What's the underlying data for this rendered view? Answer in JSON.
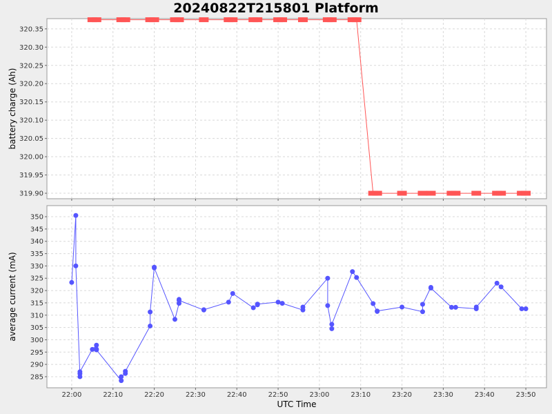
{
  "title": "20240822T215801 Platform",
  "xlabel": "UTC Time",
  "x_ticks": [
    "22:00",
    "22:10",
    "22:20",
    "22:30",
    "22:40",
    "22:50",
    "23:00",
    "23:10",
    "23:20",
    "23:30",
    "23:40",
    "23:50"
  ],
  "colors": {
    "top_series": "#ff5555",
    "bottom_series": "#5555ff",
    "grid": "#d8d8d8",
    "plot_bg": "#ffffff",
    "page_bg": "#eeeeee"
  },
  "chart_data": [
    {
      "type": "line",
      "ylabel": "battery charge (Ah)",
      "ylim": [
        319.885,
        320.378
      ],
      "y_ticks": [
        "319.90",
        "319.95",
        "320.00",
        "320.05",
        "320.10",
        "320.15",
        "320.20",
        "320.25",
        "320.30",
        "320.35"
      ],
      "marker": "square",
      "grid": true,
      "series": [
        {
          "x": [
            "22:05",
            "22:06",
            "22:12",
            "22:13",
            "22:19",
            "22:20",
            "22:25",
            "22:26",
            "22:32",
            "22:38",
            "22:39",
            "22:44",
            "22:45",
            "22:50",
            "22:51",
            "22:56",
            "23:02",
            "23:03",
            "23:08",
            "23:09",
            "23:13",
            "23:14",
            "23:20",
            "23:25",
            "23:27",
            "23:32",
            "23:33",
            "23:38",
            "23:43",
            "23:44",
            "23:49",
            "23:50"
          ],
          "y": [
            320.375,
            320.375,
            320.375,
            320.375,
            320.375,
            320.375,
            320.375,
            320.375,
            320.375,
            320.375,
            320.375,
            320.375,
            320.375,
            320.375,
            320.375,
            320.375,
            320.375,
            320.375,
            320.375,
            320.375,
            319.9,
            319.9,
            319.9,
            319.9,
            319.9,
            319.9,
            319.9,
            319.9,
            319.9,
            319.9,
            319.9,
            319.9
          ]
        }
      ]
    },
    {
      "type": "line",
      "ylabel": "average current (mA)",
      "ylim": [
        280.5,
        354.5
      ],
      "y_ticks": [
        "285",
        "290",
        "295",
        "300",
        "305",
        "310",
        "315",
        "320",
        "325",
        "330",
        "335",
        "340",
        "345",
        "350"
      ],
      "marker": "circle",
      "grid": true,
      "series": [
        {
          "x": [
            "22:00",
            "22:01",
            "22:01",
            "22:02",
            "22:02",
            "22:02",
            "22:05",
            "22:06",
            "22:06",
            "22:06",
            "22:12",
            "22:12",
            "22:13",
            "22:13",
            "22:19",
            "22:19",
            "22:20",
            "22:20",
            "22:25",
            "22:26",
            "22:26",
            "22:26",
            "22:32",
            "22:32",
            "22:38",
            "22:39",
            "22:44",
            "22:45",
            "22:45",
            "22:50",
            "22:51",
            "22:56",
            "22:56",
            "23:02",
            "23:02",
            "23:03",
            "23:03",
            "23:08",
            "23:09",
            "23:13",
            "23:14",
            "23:14",
            "23:20",
            "23:25",
            "23:25",
            "23:27",
            "23:27",
            "23:32",
            "23:33",
            "23:38",
            "23:38",
            "23:43",
            "23:44",
            "23:49",
            "23:50"
          ],
          "y": [
            323.3,
            350.5,
            330.0,
            285.0,
            286.2,
            287.0,
            296.1,
            297.8,
            296.2,
            295.9,
            283.4,
            285.0,
            286.3,
            287.2,
            305.6,
            311.3,
            329.5,
            329.2,
            308.3,
            314.8,
            316.4,
            316.0,
            312.1,
            312.2,
            315.3,
            318.8,
            313.0,
            314.2,
            314.5,
            315.3,
            314.8,
            312.1,
            313.3,
            325.0,
            313.9,
            304.5,
            306.3,
            327.7,
            325.3,
            314.7,
            311.5,
            311.7,
            313.3,
            311.4,
            314.4,
            321.3,
            321.0,
            313.2,
            313.2,
            312.6,
            313.3,
            323.0,
            321.5,
            312.6,
            312.6
          ]
        }
      ]
    }
  ]
}
